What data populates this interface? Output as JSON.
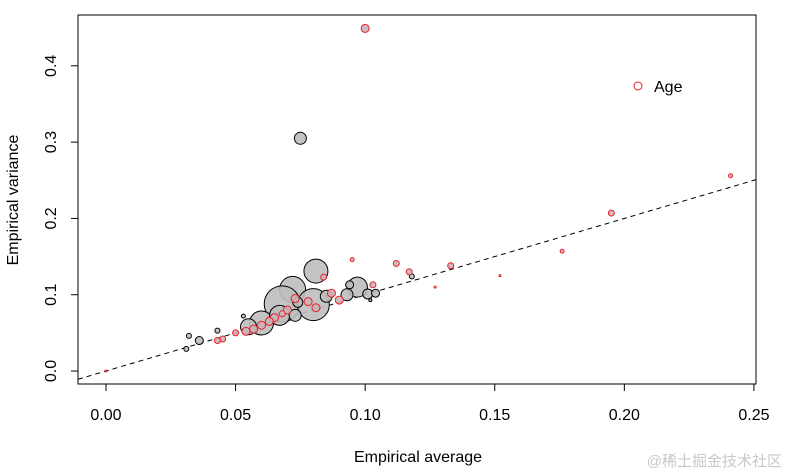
{
  "chart_data": {
    "type": "scatter",
    "x_label": "Empirical average",
    "y_label": "Empirical variance",
    "xlim": [
      -0.0108,
      0.2508
    ],
    "ylim": [
      -0.017,
      0.4666
    ],
    "xticks": [
      {
        "value": 0,
        "label": "0.00"
      },
      0.05,
      {
        "value": 0.1,
        "label": "0.10"
      },
      0.15,
      {
        "value": 0.2,
        "label": "0.20"
      },
      0.25
    ],
    "yticks": [
      {
        "value": 0,
        "label": "0.0"
      },
      0.1,
      0.2,
      0.3,
      0.4
    ],
    "reference_line": {
      "slope": 1,
      "intercept": 0
    },
    "legend_position": "topright",
    "series": [
      {
        "color": "#000000",
        "fill": "#bebebe",
        "x": [
          0.075,
          0.081,
          0.072,
          0.068,
          0.08,
          0.06,
          0.067,
          0.055,
          0.097,
          0.093,
          0.085,
          0.101,
          0.094,
          0.104,
          0.036,
          0.031,
          0.032,
          0.043,
          0.118,
          0.073,
          0.053,
          0.102,
          0.074
        ],
        "values": [
          0.305,
          0.131,
          0.107,
          0.088,
          0.087,
          0.063,
          0.073,
          0.058,
          0.11,
          0.1,
          0.098,
          0.101,
          0.113,
          0.102,
          0.04,
          0.029,
          0.046,
          0.053,
          0.124,
          0.073,
          0.072,
          0.093,
          0.09
        ],
        "sizes": [
          6,
          12,
          13,
          18,
          16,
          12,
          10,
          8,
          10,
          6,
          6,
          5,
          4,
          4,
          4,
          2.5,
          2.5,
          2.5,
          2.5,
          6,
          2,
          1.5,
          5
        ]
      },
      {
        "name": "Age",
        "color": "#e8202a",
        "fill": "#c8b4b8",
        "x": [
          0.1,
          0.241,
          0.195,
          0.176,
          0.152,
          0.127,
          0.133,
          0.117,
          0.112,
          0.095,
          0.084,
          0.103,
          0.087,
          0.09,
          0.078,
          0.073,
          0.07,
          0.065,
          0.063,
          0.06,
          0.057,
          0.054,
          0.05,
          0.045,
          0.043,
          0.0,
          0.081,
          0.068
        ],
        "values": [
          0.449,
          0.256,
          0.207,
          0.157,
          0.125,
          0.11,
          0.138,
          0.13,
          0.141,
          0.146,
          0.123,
          0.113,
          0.102,
          0.093,
          0.091,
          0.095,
          0.08,
          0.07,
          0.065,
          0.06,
          0.055,
          0.052,
          0.05,
          0.042,
          0.04,
          0.0,
          0.083,
          0.075
        ],
        "sizes": [
          4,
          2,
          3,
          2,
          1,
          1,
          3,
          3,
          3,
          2,
          3,
          3,
          4,
          4,
          4,
          4,
          4,
          4,
          4,
          4,
          4,
          4,
          3,
          3,
          3,
          1,
          4,
          3
        ]
      }
    ]
  },
  "watermark": "@稀土掘金技术社区"
}
